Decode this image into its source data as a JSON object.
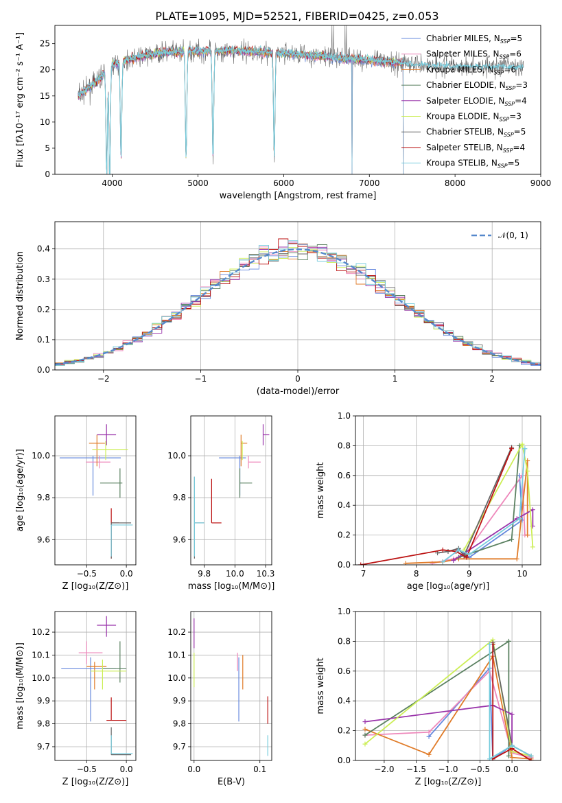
{
  "figure_title": "PLATE=1095, MJD=52521, FIBERID=0425, z=0.053",
  "colors": {
    "Chabrier MILES": "#6688dd",
    "Salpeter MILES": "#ee88bb",
    "Kroupa MILES": "#e07b28",
    "Chabrier ELODIE": "#5a8060",
    "Salpeter ELODIE": "#9933aa",
    "Kroupa ELODIE": "#ccee55",
    "Chabrier STELIB": "#666666",
    "Salpeter STELIB": "#bb1111",
    "Kroupa STELIB": "#77ccdd",
    "normal": "#5588cc",
    "grid": "#b0b0b0"
  },
  "chart_data": [
    {
      "id": "spectrum",
      "type": "line",
      "xlabel": "wavelength [Angstrom, rest frame]",
      "ylabel": "Flux [fλ10⁻¹⁷ erg cm⁻² s⁻¹ A⁻¹]",
      "xlim": [
        3330,
        9000
      ],
      "ylim": [
        0,
        28.5
      ],
      "xticks": [
        4000,
        5000,
        6000,
        7000,
        8000,
        9000
      ],
      "yticks": [
        0,
        5,
        10,
        15,
        20,
        25
      ],
      "grid": false,
      "legend_position": "top-right",
      "legend": [
        {
          "label": "Chabrier MILES, N",
          "sub": "SSP",
          "value": "=5"
        },
        {
          "label": "Salpeter MILES, N",
          "sub": "SSP",
          "value": "=6"
        },
        {
          "label": "Kroupa MILES, N",
          "sub": "SSP",
          "value": "=6"
        },
        {
          "label": "Chabrier ELODIE, N",
          "sub": "SSP",
          "value": "=3"
        },
        {
          "label": "Salpeter ELODIE, N",
          "sub": "SSP",
          "value": "=4"
        },
        {
          "label": "Kroupa ELODIE, N",
          "sub": "SSP",
          "value": "=3"
        },
        {
          "label": "Chabrier STELIB, N",
          "sub": "SSP",
          "value": "=5"
        },
        {
          "label": "Salpeter STELIB, N",
          "sub": "SSP",
          "value": "=4"
        },
        {
          "label": "Kroupa STELIB, N",
          "sub": "SSP",
          "value": "=5"
        }
      ],
      "continuum": [
        [
          3600,
          15
        ],
        [
          3800,
          17.5
        ],
        [
          4000,
          21
        ],
        [
          4300,
          22.5
        ],
        [
          4600,
          23.3
        ],
        [
          5000,
          23.6
        ],
        [
          5500,
          23.6
        ],
        [
          6000,
          23.2
        ],
        [
          6500,
          22.5
        ],
        [
          7000,
          21.8
        ],
        [
          7400,
          21.3
        ],
        [
          7600,
          21
        ],
        [
          8000,
          20.8
        ],
        [
          8500,
          20.6
        ],
        [
          8800,
          20.5
        ]
      ],
      "model_range": [
        3600,
        7400
      ],
      "data_range": [
        3600,
        8800
      ],
      "absorption_dips": [
        [
          3934,
          0.5
        ],
        [
          3969,
          0.6
        ],
        [
          4102,
          3
        ],
        [
          4861,
          3
        ],
        [
          5175,
          3
        ],
        [
          5890,
          3
        ]
      ],
      "spikes_down": [
        [
          3934,
          0
        ],
        [
          3969,
          0
        ],
        [
          6800,
          0
        ],
        [
          7400,
          0
        ]
      ],
      "spikes_up": [
        [
          6563,
          28.5
        ],
        [
          6583,
          28.5
        ],
        [
          6717,
          28.5
        ],
        [
          6731,
          28.5
        ]
      ]
    },
    {
      "id": "residual_hist",
      "type": "line",
      "xlabel": "(data-model)/error",
      "ylabel": "Normed distribution",
      "xlim": [
        -2.5,
        2.5
      ],
      "ylim": [
        0,
        0.49
      ],
      "xticks": [
        -2,
        -1,
        0,
        1,
        2
      ],
      "yticks": [
        0.0,
        0.1,
        0.2,
        0.3,
        0.4
      ],
      "grid": true,
      "legend_position": "top-right",
      "legend_label": "𝒩(0, 1)",
      "bin_width": 0.1,
      "bin_start": -2.5,
      "normal": {
        "mu": 0,
        "sigma": 1
      }
    },
    {
      "id": "age_vs_Z",
      "type": "scatter",
      "xlabel": "Z [log₁₀(Z/Z⊙)]",
      "ylabel": "age  [log₁₀(age/yr)]",
      "xlim": [
        -0.9,
        0.12
      ],
      "ylim": [
        9.48,
        10.19
      ],
      "xticks": [
        -0.5,
        0.0
      ],
      "yticks": [
        9.6,
        9.8,
        10.0
      ],
      "grid": true,
      "points": [
        {
          "series": "Chabrier MILES",
          "x": -0.42,
          "xerr": [
            0.42,
            0.35
          ],
          "y": 9.99,
          "yerr": [
            0.18,
            0.01
          ]
        },
        {
          "series": "Salpeter MILES",
          "x": -0.34,
          "xerr": [
            0.17,
            0.14
          ],
          "y": 9.97,
          "yerr": [
            0.03,
            0.03
          ]
        },
        {
          "series": "Kroupa MILES",
          "x": -0.37,
          "xerr": [
            0.1,
            0.1
          ],
          "y": 10.06,
          "yerr": [
            0.11,
            0.04
          ]
        },
        {
          "series": "Chabrier ELODIE",
          "x": -0.08,
          "xerr": [
            0.25,
            0.03
          ],
          "y": 9.87,
          "yerr": [
            0.07,
            0.07
          ]
        },
        {
          "series": "Salpeter ELODIE",
          "x": -0.25,
          "xerr": [
            0.12,
            0.12
          ],
          "y": 10.1,
          "yerr": [
            0.05,
            0.05
          ]
        },
        {
          "series": "Kroupa ELODIE",
          "x": -0.26,
          "xerr": [
            0.17,
            0.28
          ],
          "y": 10.03,
          "yerr": [
            0.05,
            0.04
          ]
        },
        {
          "series": "Salpeter STELIB",
          "x": -0.19,
          "xerr": [
            0.0,
            0.1
          ],
          "y": 9.68,
          "yerr": [
            0.17,
            0.07
          ]
        },
        {
          "series": "Chabrier STELIB",
          "x": -0.19,
          "xerr": [
            0.0,
            0.25
          ],
          "y": 9.68,
          "yerr": [
            0.17,
            0.0
          ]
        },
        {
          "series": "Kroupa STELIB",
          "x": -0.19,
          "xerr": [
            0.0,
            0.27
          ],
          "y": 9.67,
          "yerr": [
            0.15,
            0.0
          ]
        }
      ]
    },
    {
      "id": "age_vs_mass",
      "type": "scatter",
      "xlabel": "mass [log₁₀(M/M⊙)]",
      "ylabel": "",
      "xlim": [
        9.64,
        10.3
      ],
      "ylim": [
        9.48,
        10.19
      ],
      "xticks": [
        9.75,
        10.0,
        10.25
      ],
      "yticks": [
        9.6,
        9.8,
        10.0
      ],
      "grid": true,
      "points": [
        {
          "series": "Chabrier MILES",
          "x": 10.04,
          "xerr": [
            0.17,
            0.05
          ],
          "y": 9.99,
          "yerr": [
            0.18,
            0.01
          ]
        },
        {
          "series": "Salpeter MILES",
          "x": 10.11,
          "xerr": [
            0.0,
            0.1
          ],
          "y": 9.97,
          "yerr": [
            0.03,
            0.03
          ]
        },
        {
          "series": "Kroupa MILES",
          "x": 10.05,
          "xerr": [
            0.0,
            0.05
          ],
          "y": 10.06,
          "yerr": [
            0.11,
            0.04
          ]
        },
        {
          "series": "Chabrier ELODIE",
          "x": 10.04,
          "xerr": [
            0.0,
            0.1
          ],
          "y": 9.87,
          "yerr": [
            0.07,
            0.07
          ]
        },
        {
          "series": "Salpeter ELODIE",
          "x": 10.23,
          "xerr": [
            0.0,
            0.05
          ],
          "y": 10.1,
          "yerr": [
            0.05,
            0.05
          ]
        },
        {
          "series": "Kroupa ELODIE",
          "x": 10.06,
          "xerr": [
            0.0,
            0.0
          ],
          "y": 10.03,
          "yerr": [
            0.05,
            0.04
          ]
        },
        {
          "series": "Salpeter STELIB",
          "x": 9.81,
          "xerr": [
            0.0,
            0.08
          ],
          "y": 9.68,
          "yerr": [
            0.0,
            0.21
          ]
        },
        {
          "series": "Chabrier STELIB",
          "x": 9.67,
          "xerr": [
            0.0,
            0.08
          ],
          "y": 9.68,
          "yerr": [
            0.17,
            0.22
          ]
        },
        {
          "series": "Kroupa STELIB",
          "x": 9.67,
          "xerr": [
            0.0,
            0.08
          ],
          "y": 9.68,
          "yerr": [
            0.16,
            0.22
          ]
        }
      ]
    },
    {
      "id": "weight_vs_age",
      "type": "line",
      "xlabel": "age  [log₁₀(age/yr)]",
      "ylabel": "mass weight",
      "xlim": [
        6.85,
        10.35
      ],
      "ylim": [
        0,
        1.0
      ],
      "xticks": [
        7,
        8,
        9,
        10
      ],
      "yticks": [
        0.0,
        0.2,
        0.4,
        0.6,
        0.8,
        1.0
      ],
      "grid": true,
      "series": [
        {
          "name": "Chabrier MILES",
          "x": [
            8.5,
            8.8,
            9.0,
            10.0,
            9.95
          ],
          "y": [
            0.02,
            0.1,
            0.05,
            0.3,
            0.6
          ]
        },
        {
          "name": "Salpeter MILES",
          "x": [
            8.3,
            8.7,
            8.9,
            10.0,
            10.05,
            10.1
          ],
          "y": [
            0.01,
            0.04,
            0.06,
            0.6,
            0.2,
            0.2
          ]
        },
        {
          "name": "Kroupa MILES",
          "x": [
            7.8,
            8.5,
            8.8,
            9.9,
            10.1,
            10.1
          ],
          "y": [
            0.01,
            0.02,
            0.04,
            0.04,
            0.7,
            0.2
          ]
        },
        {
          "name": "Chabrier ELODIE",
          "x": [
            8.8,
            9.8,
            9.95
          ],
          "y": [
            0.05,
            0.17,
            0.8
          ]
        },
        {
          "name": "Salpeter ELODIE",
          "x": [
            8.7,
            9.9,
            10.2,
            10.2
          ],
          "y": [
            0.03,
            0.31,
            0.37,
            0.26
          ]
        },
        {
          "name": "Kroupa ELODIE",
          "x": [
            8.9,
            10.0,
            10.1,
            10.2
          ],
          "y": [
            0.1,
            0.81,
            0.63,
            0.12
          ]
        },
        {
          "name": "Chabrier STELIB",
          "x": [
            8.4,
            8.6,
            8.8,
            8.9,
            9.8
          ],
          "y": [
            0.08,
            0.09,
            0.11,
            0.06,
            0.79
          ]
        },
        {
          "name": "Salpeter STELIB",
          "x": [
            6.95,
            8.5,
            8.75,
            8.95,
            9.8
          ],
          "y": [
            0.0,
            0.1,
            0.09,
            0.05,
            0.78
          ]
        },
        {
          "name": "Kroupa STELIB",
          "x": [
            8.5,
            8.8,
            9.0,
            9.95,
            10.05
          ],
          "y": [
            0.02,
            0.1,
            0.07,
            0.31,
            0.78
          ]
        }
      ]
    },
    {
      "id": "mass_vs_Z",
      "type": "scatter",
      "xlabel": "Z [log₁₀(Z/Z⊙)]",
      "ylabel": "mass [log₁₀(M/M⊙)]",
      "xlim": [
        -0.9,
        0.12
      ],
      "ylim": [
        9.64,
        10.29
      ],
      "xticks": [
        -0.5,
        0.0
      ],
      "yticks": [
        9.7,
        9.8,
        9.9,
        10.0,
        10.1,
        10.2
      ],
      "grid": true,
      "points": [
        {
          "series": "Chabrier MILES",
          "x": -0.45,
          "xerr": [
            0.37,
            0.32
          ],
          "y": 10.04,
          "yerr": [
            0.23,
            0.05
          ]
        },
        {
          "series": "Salpeter MILES",
          "x": -0.5,
          "xerr": [
            0.1,
            0.2
          ],
          "y": 10.11,
          "yerr": [
            0.05,
            0.05
          ]
        },
        {
          "series": "Kroupa MILES",
          "x": -0.4,
          "xerr": [
            0.1,
            0.15
          ],
          "y": 10.05,
          "yerr": [
            0.1,
            0.02
          ]
        },
        {
          "series": "Chabrier ELODIE",
          "x": -0.08,
          "xerr": [
            0.22,
            0.08
          ],
          "y": 10.04,
          "yerr": [
            0.06,
            0.12
          ]
        },
        {
          "series": "Salpeter ELODIE",
          "x": -0.25,
          "xerr": [
            0.12,
            0.12
          ],
          "y": 10.23,
          "yerr": [
            0.05,
            0.04
          ]
        },
        {
          "series": "Kroupa ELODIE",
          "x": -0.3,
          "xerr": [
            0.15,
            0.3
          ],
          "y": 10.03,
          "yerr": [
            0.08,
            0.05
          ]
        },
        {
          "series": "Salpeter STELIB",
          "x": -0.19,
          "xerr": [
            0.06,
            0.19
          ],
          "y": 9.815,
          "yerr": [
            0.0,
            0.1
          ]
        },
        {
          "series": "Chabrier STELIB",
          "x": -0.19,
          "xerr": [
            0.0,
            0.25
          ],
          "y": 9.665,
          "yerr": [
            0.0,
            0.12
          ]
        },
        {
          "series": "Kroupa STELIB",
          "x": -0.19,
          "xerr": [
            0.0,
            0.27
          ],
          "y": 9.67,
          "yerr": [
            0.0,
            0.08
          ]
        }
      ]
    },
    {
      "id": "mass_vs_ebv",
      "type": "scatter",
      "xlabel": "E(B-V)",
      "ylabel": "",
      "xlim": [
        -0.005,
        0.118
      ],
      "ylim": [
        9.64,
        10.29
      ],
      "xticks": [
        0.0,
        0.1
      ],
      "yticks": [
        9.7,
        9.8,
        9.9,
        10.0,
        10.1,
        10.2
      ],
      "grid": true,
      "points": [
        {
          "series": "Chabrier MILES",
          "x": 0.068,
          "y": 10.04,
          "yerr": [
            0.23,
            0.05
          ]
        },
        {
          "series": "Salpeter MILES",
          "x": 0.066,
          "y": 10.08,
          "yerr": [
            0.05,
            0.03
          ]
        },
        {
          "series": "Kroupa MILES",
          "x": 0.074,
          "y": 10.07,
          "yerr": [
            0.12,
            0.03
          ]
        },
        {
          "series": "Salpeter ELODIE",
          "x": 0.0,
          "y": 10.22,
          "yerr": [
            0.09,
            0.04
          ]
        },
        {
          "series": "Kroupa ELODIE",
          "x": 0.0,
          "y": 10.06,
          "yerr": [
            0.1,
            0.05
          ]
        },
        {
          "series": "Salpeter STELIB",
          "x": 0.112,
          "y": 9.83,
          "yerr": [
            0.03,
            0.09
          ]
        },
        {
          "series": "Kroupa STELIB",
          "x": 0.112,
          "y": 9.7,
          "yerr": [
            0.04,
            0.05
          ]
        }
      ]
    },
    {
      "id": "weight_vs_Z",
      "type": "line",
      "xlabel": "Z [log₁₀(Z/Z⊙)]",
      "ylabel": "mass weight",
      "xlim": [
        -2.45,
        0.45
      ],
      "ylim": [
        0,
        1.0
      ],
      "xticks": [
        -2.0,
        -1.5,
        -1.0,
        -0.5,
        0.0
      ],
      "yticks": [
        0.0,
        0.2,
        0.4,
        0.6,
        0.8,
        1.0
      ],
      "grid": true,
      "series": [
        {
          "name": "Chabrier MILES",
          "x": [
            -1.3,
            -0.35,
            -0.3,
            0.0,
            0.3
          ],
          "y": [
            0.16,
            0.62,
            0.01,
            0.1,
            0.03
          ]
        },
        {
          "name": "Salpeter MILES",
          "x": [
            -2.3,
            -1.3,
            -0.35,
            0.0,
            0.3
          ],
          "y": [
            0.17,
            0.19,
            0.6,
            0.05,
            0.02
          ]
        },
        {
          "name": "Kroupa MILES",
          "x": [
            -2.3,
            -1.3,
            -0.3,
            0.0,
            0.3
          ],
          "y": [
            0.21,
            0.04,
            0.7,
            0.02,
            0.01
          ]
        },
        {
          "name": "Chabrier ELODIE",
          "x": [
            -2.3,
            -0.05,
            -0.05
          ],
          "y": [
            0.17,
            0.8,
            0.03
          ]
        },
        {
          "name": "Salpeter ELODIE",
          "x": [
            -2.3,
            -0.3,
            0.0,
            0.0
          ],
          "y": [
            0.26,
            0.37,
            0.31,
            0.06
          ]
        },
        {
          "name": "Kroupa ELODIE",
          "x": [
            -2.3,
            -0.3,
            0.0,
            0.3
          ],
          "y": [
            0.11,
            0.81,
            0.06,
            0.03
          ]
        },
        {
          "name": "Chabrier STELIB",
          "x": [
            -0.3,
            0.0,
            0.3
          ],
          "y": [
            0.79,
            0.1,
            0.03
          ]
        },
        {
          "name": "Salpeter STELIB",
          "x": [
            -0.3,
            -0.3,
            0.0,
            0.3
          ],
          "y": [
            0.78,
            0.01,
            0.08,
            0.0
          ]
        },
        {
          "name": "Kroupa STELIB",
          "x": [
            -0.35,
            -0.35,
            0.0,
            0.3
          ],
          "y": [
            0.78,
            0.01,
            0.1,
            0.03
          ]
        }
      ]
    }
  ]
}
